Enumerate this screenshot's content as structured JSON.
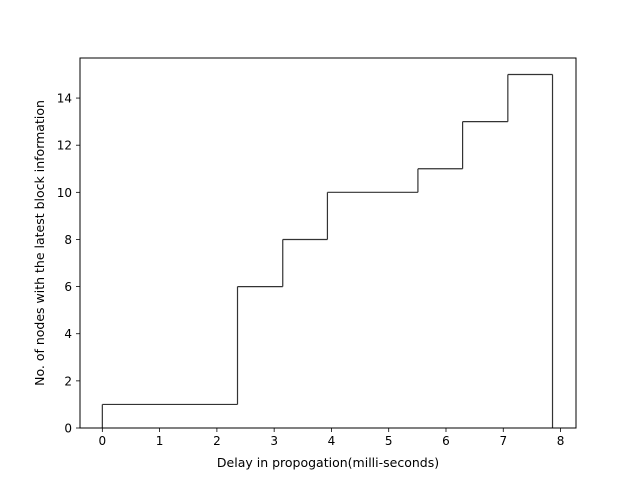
{
  "chart_data": {
    "type": "step-histogram",
    "title": "",
    "xlabel": "Delay in propogation(milli-seconds)",
    "ylabel": "No. of nodes with the latest block information",
    "xlim": [
      -0.39,
      8.27
    ],
    "ylim": [
      0,
      15.7
    ],
    "xticks": [
      0,
      1,
      2,
      3,
      4,
      5,
      6,
      7,
      8
    ],
    "yticks": [
      0,
      2,
      4,
      6,
      8,
      10,
      12,
      14
    ],
    "grid": false,
    "legend": "none",
    "line_color": "#333333",
    "steps": [
      {
        "x_start": 0.0,
        "x_end": 2.36,
        "count": 1
      },
      {
        "x_start": 2.36,
        "x_end": 3.15,
        "count": 6
      },
      {
        "x_start": 3.15,
        "x_end": 3.93,
        "count": 8
      },
      {
        "x_start": 3.93,
        "x_end": 5.51,
        "count": 10
      },
      {
        "x_start": 5.51,
        "x_end": 6.29,
        "count": 11
      },
      {
        "x_start": 6.29,
        "x_end": 7.08,
        "count": 13
      },
      {
        "x_start": 7.08,
        "x_end": 7.86,
        "count": 15
      }
    ]
  }
}
